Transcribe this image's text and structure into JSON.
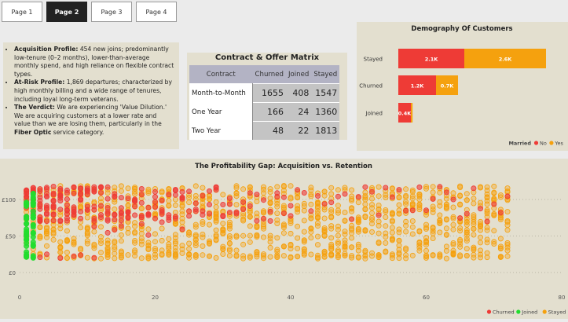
{
  "tabs": [
    "Page 1",
    "Page 2",
    "Page 3",
    "Page 4"
  ],
  "active_tab": 1,
  "insights": {
    "items": [
      {
        "heading": "Acquisition Profile:",
        "text": " 454 new joins; predominantly low-tenure (0–2 months), lower-than-average monthly spend, and high reliance on flexible contract types."
      },
      {
        "heading": "At-Risk Profile:",
        "text": " 1,869 departures; characterized by high monthly billing and a wide range of tenures, including loyal long-term veterans."
      },
      {
        "heading": "The Verdict:",
        "text": " We are experiencing 'Value Dilution.' We are acquiring customers at a lower rate and value than we are losing them, particularly in the ",
        "bold_tail": "Fiber Optic",
        "tail": " service category."
      }
    ]
  },
  "matrix": {
    "title": "Contract & Offer Matrix",
    "columns": [
      "Contract",
      "Churned",
      "Joined",
      "Stayed"
    ],
    "rows": [
      {
        "label": "Month-to-Month",
        "values": [
          "1655",
          "408",
          "1547"
        ]
      },
      {
        "label": "One Year",
        "values": [
          "166",
          "24",
          "1360"
        ]
      },
      {
        "label": "Two Year",
        "values": [
          "48",
          "22",
          "1813"
        ]
      }
    ]
  },
  "colors": {
    "no": "#ee3b36",
    "yes": "#f5a10e",
    "churned": "#ee3b36",
    "joined": "#22dd2e",
    "stayed": "#f5a10e"
  },
  "chart_data": [
    {
      "type": "bar",
      "orientation": "horizontal",
      "stacked": true,
      "title": "Demography Of Customers",
      "categories": [
        "Stayed",
        "Churned",
        "Joined"
      ],
      "series": [
        {
          "name": "No",
          "values": [
            2100,
            1200,
            400
          ],
          "labels": [
            "2.1K",
            "1.2K",
            "0.4K"
          ]
        },
        {
          "name": "Yes",
          "values": [
            2600,
            700,
            54
          ],
          "labels": [
            "2.6K",
            "0.7K",
            ""
          ]
        }
      ],
      "legend_title": "Married",
      "legend_position": "bottom-right"
    },
    {
      "type": "scatter",
      "title": "The Profitability Gap: Acquisition vs. Retention",
      "xlim": [
        0,
        80
      ],
      "ylim": [
        -5,
        125
      ],
      "x_ticks": [
        "0",
        "20",
        "40",
        "60",
        "80"
      ],
      "y_ticks": [
        "£0",
        "£50",
        "£100"
      ],
      "y_tick_values": [
        0,
        50,
        100
      ],
      "legend": [
        "Churned",
        "Joined",
        "Stayed"
      ],
      "legend_position": "bottom-right",
      "series_summary": [
        {
          "name": "Joined",
          "tenure_range": [
            0,
            2
          ],
          "charge_ranges": [
            [
              18,
              25
            ],
            [
              20,
              110
            ]
          ]
        },
        {
          "name": "Churned",
          "tenure_range": [
            1,
            72
          ],
          "charge_ranges": [
            [
              18,
              25
            ],
            [
              70,
              118
            ]
          ]
        },
        {
          "name": "Stayed",
          "tenure_range": [
            1,
            72
          ],
          "charge_ranges": [
            [
              18,
              26
            ],
            [
              20,
              119
            ]
          ]
        }
      ]
    }
  ]
}
